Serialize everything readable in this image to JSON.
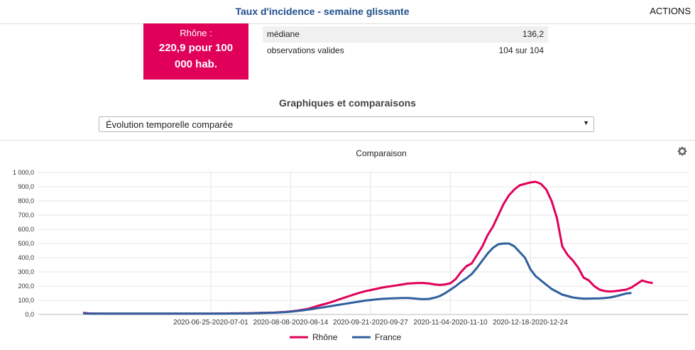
{
  "header": {
    "title": "Taux d'incidence - semaine glissante",
    "actions_label": "ACTIONS"
  },
  "kpi": {
    "name": "Rhône :",
    "value": "220,9 pour 100 000 hab.",
    "color": "#e0005a"
  },
  "stats": [
    {
      "label": "médiane",
      "value": "136,2"
    },
    {
      "label": "observations valides",
      "value": "104 sur 104"
    }
  ],
  "section_title": "Graphiques et comparaisons",
  "select": {
    "value": "Évolution temporelle comparée"
  },
  "chart_data": {
    "type": "line",
    "title": "Comparaison",
    "ylim": [
      0,
      1000
    ],
    "y_ticks": [
      "0,0",
      "100,0",
      "200,0",
      "300,0",
      "400,0",
      "500,0",
      "600,0",
      "700,0",
      "800,0",
      "900,0",
      "1 000,0"
    ],
    "x_tick_labels": [
      "2020-06-25-2020-07-01",
      "2020-08-08-2020-08-14",
      "2020-09-21-2020-09-27",
      "2020-11-04-2020-11-10",
      "2020-12-18-2020-12-24"
    ],
    "x_tick_index": [
      24,
      39,
      54,
      69,
      84
    ],
    "x_count": 104,
    "legend_position": "bottom",
    "grid": true,
    "series": [
      {
        "name": "Rhône",
        "color": "#e0005a",
        "values": [
          12,
          8,
          7,
          7,
          6,
          6,
          6,
          6,
          6,
          6,
          6,
          6,
          6,
          6,
          6,
          6,
          6,
          6,
          6,
          6,
          6,
          6,
          6,
          6,
          6,
          7,
          7,
          7,
          8,
          8,
          9,
          9,
          10,
          11,
          12,
          13,
          14,
          16,
          18,
          22,
          26,
          32,
          38,
          48,
          60,
          70,
          80,
          92,
          105,
          118,
          130,
          142,
          154,
          164,
          172,
          180,
          188,
          195,
          200,
          206,
          212,
          218,
          220,
          222,
          222,
          218,
          212,
          208,
          212,
          220,
          250,
          300,
          340,
          360,
          420,
          480,
          560,
          620,
          700,
          780,
          840,
          880,
          910,
          920,
          930,
          935,
          920,
          880,
          800,
          680,
          480,
          420,
          380,
          330,
          260,
          240,
          200,
          175,
          165,
          162,
          165,
          170,
          175,
          190,
          215,
          240,
          228,
          221
        ]
      },
      {
        "name": "France",
        "color": "#2f5f9e",
        "values": [
          8,
          6,
          6,
          6,
          6,
          6,
          6,
          6,
          6,
          6,
          6,
          6,
          6,
          6,
          6,
          6,
          6,
          6,
          6,
          6,
          6,
          6,
          6,
          6,
          6,
          6,
          6,
          7,
          7,
          7,
          8,
          8,
          9,
          10,
          11,
          12,
          13,
          15,
          17,
          20,
          24,
          28,
          33,
          38,
          44,
          50,
          56,
          62,
          68,
          74,
          80,
          86,
          92,
          98,
          102,
          106,
          110,
          112,
          114,
          115,
          116,
          116,
          114,
          110,
          108,
          110,
          118,
          130,
          150,
          175,
          200,
          230,
          255,
          285,
          330,
          380,
          430,
          470,
          495,
          500,
          500,
          480,
          440,
          400,
          320,
          270,
          240,
          210,
          180,
          160,
          140,
          130,
          120,
          115,
          112,
          112,
          113,
          114,
          116,
          120,
          128,
          138,
          148,
          152
        ]
      }
    ]
  }
}
